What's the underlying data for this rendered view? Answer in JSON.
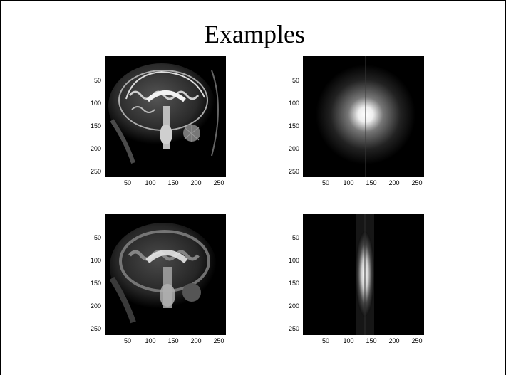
{
  "slide": {
    "title": "Examples",
    "panels": [
      {
        "name": "original-brain-image",
        "content": "sagittal MRI brain slice"
      },
      {
        "name": "fourier-spectrum",
        "content": "k-space magnitude spectrum"
      },
      {
        "name": "filtered-brain-image",
        "content": "blurred sagittal MRI brain slice"
      },
      {
        "name": "filtered-spectrum",
        "content": "vertically band-limited k-space spectrum"
      }
    ],
    "axes": {
      "y_ticks": [
        "50",
        "100",
        "150",
        "200",
        "250"
      ],
      "x_ticks": [
        "50",
        "100",
        "150",
        "200",
        "250"
      ],
      "range": [
        0,
        256
      ]
    }
  }
}
